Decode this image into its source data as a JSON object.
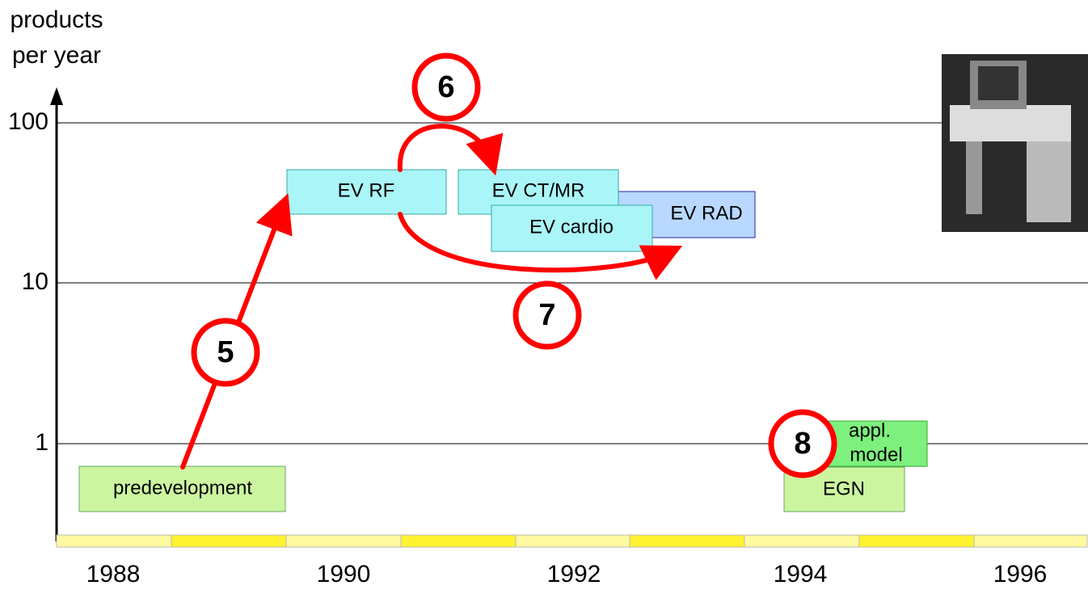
{
  "axis": {
    "label_line1": "products",
    "label_line2": "per year",
    "ticks": [
      "100",
      "10",
      "1"
    ]
  },
  "timeline": {
    "years": [
      "1988",
      "1990",
      "1992",
      "1994",
      "1996"
    ]
  },
  "boxes": {
    "predevelopment": "predevelopment",
    "ev_rf": "EV RF",
    "ev_ctmr": "EV CT/MR",
    "ev_rad": "EV RAD",
    "ev_cardio": "EV cardio",
    "egn": "EGN",
    "appl_model_line1": "appl.",
    "appl_model_line2": "model"
  },
  "steps": [
    "5",
    "6",
    "7",
    "8"
  ]
}
